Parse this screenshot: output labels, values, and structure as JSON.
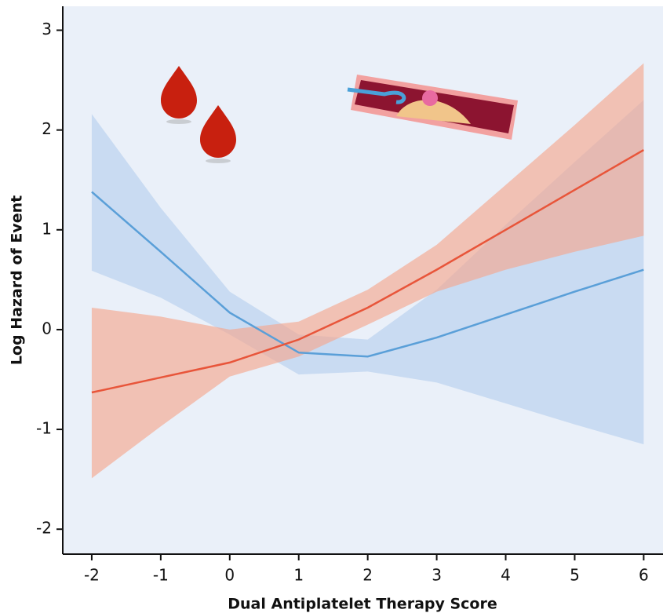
{
  "chart_data": {
    "type": "line",
    "x_label": "Dual Antiplatelet Therapy Score",
    "y_label": "Log Hazard of Event",
    "x": [
      -2,
      -1,
      0,
      1,
      2,
      3,
      4,
      5,
      6
    ],
    "series": [
      {
        "color": "#5a9fd8",
        "band_color": "#b7d0ee",
        "values": [
          1.38,
          0.78,
          0.17,
          -0.23,
          -0.27,
          -0.08,
          0.15,
          0.38,
          0.6
        ],
        "lower": [
          0.59,
          0.32,
          -0.05,
          -0.45,
          -0.42,
          -0.53,
          -0.74,
          -0.95,
          -1.15
        ],
        "upper": [
          2.16,
          1.22,
          0.38,
          -0.05,
          -0.1,
          0.4,
          1.05,
          1.68,
          2.3
        ]
      },
      {
        "color": "#e8553a",
        "band_color": "#f4a88f",
        "values": [
          -0.63,
          -0.48,
          -0.33,
          -0.1,
          0.22,
          0.6,
          1.0,
          1.4,
          1.8
        ],
        "lower": [
          -1.49,
          -0.97,
          -0.47,
          -0.27,
          0.05,
          0.38,
          0.6,
          0.78,
          0.94
        ],
        "upper": [
          0.22,
          0.13,
          0.0,
          0.08,
          0.4,
          0.85,
          1.45,
          2.05,
          2.67
        ]
      }
    ],
    "xlim": [
      -2.42,
      6.28
    ],
    "ylim": [
      -2.25,
      3.24
    ],
    "xticks": [
      -2,
      -1,
      0,
      1,
      2,
      3,
      4,
      5,
      6
    ],
    "yticks": [
      -2,
      -1,
      0,
      1,
      2,
      3
    ]
  }
}
